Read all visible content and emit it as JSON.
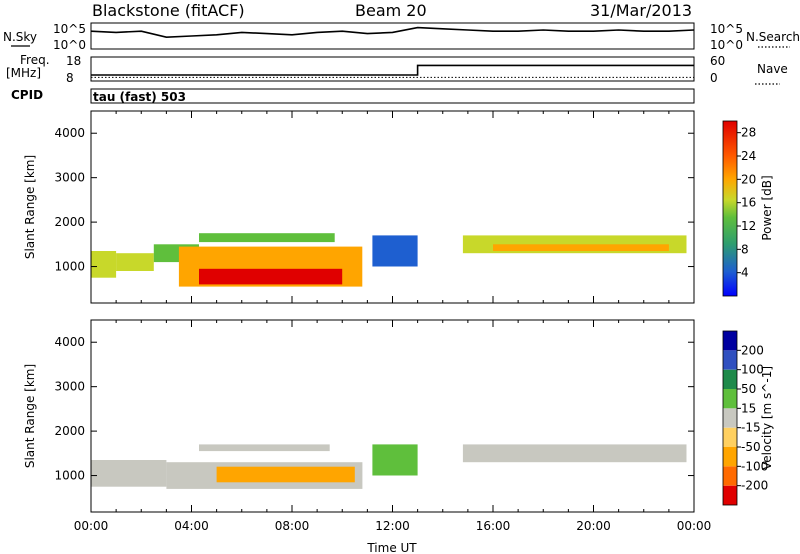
{
  "header": {
    "radar": "Blackstone (fitACF)",
    "beam": "Beam 20",
    "date": "31/Mar/2013"
  },
  "panel_labels": {
    "nsky": "N.Sky",
    "nsearch": "N.Search",
    "freq": "Freq.",
    "freq_unit": "[MHz]",
    "nave": "Nave",
    "cpid": "CPID",
    "cpid_value": "tau (fast) 503"
  },
  "chart_data": [
    {
      "type": "line",
      "name": "noise",
      "ylabel_left": "N.Sky",
      "ylabel_right": "N.Search",
      "left_ticks": [
        "10^5",
        "10^0"
      ],
      "right_ticks": [
        "10^5",
        "10^0"
      ],
      "x": [
        0,
        1,
        2,
        3,
        4,
        5,
        6,
        7,
        8,
        9,
        10,
        11,
        12,
        13,
        14,
        15,
        16,
        17,
        18,
        19,
        20,
        21,
        22,
        23,
        24
      ],
      "y_frac": [
        0.3,
        0.35,
        0.3,
        0.55,
        0.5,
        0.45,
        0.35,
        0.4,
        0.45,
        0.35,
        0.3,
        0.4,
        0.35,
        0.15,
        0.2,
        0.25,
        0.3,
        0.3,
        0.25,
        0.3,
        0.3,
        0.25,
        0.3,
        0.3,
        0.25
      ]
    },
    {
      "type": "line",
      "name": "frequency",
      "ylabel_left": "Freq. [MHz]",
      "ylabel_right": "Nave",
      "left_ticks": [
        "18",
        "8"
      ],
      "right_ticks": [
        "60",
        "0"
      ],
      "x": [
        0,
        13.0,
        13.0,
        24
      ],
      "freq_mhz": [
        10.5,
        10.5,
        14.5,
        14.5
      ],
      "nave": [
        9,
        9,
        9,
        9
      ]
    },
    {
      "type": "heatmap",
      "name": "power",
      "xlabel": "",
      "ylabel": "Slant Range [km]",
      "xlim": [
        0,
        24
      ],
      "ylim": [
        180,
        4500
      ],
      "yticks": [
        1000,
        2000,
        3000,
        4000
      ],
      "colorbar_label": "Power [dB]",
      "colorbar_ticks": [
        "4",
        "8",
        "12",
        "16",
        "20",
        "24",
        "28"
      ],
      "colorbar_range": [
        0,
        30
      ],
      "colorbar_colors": [
        "#0000ff",
        "#1e5fd0",
        "#2e9e6e",
        "#5fbf3c",
        "#c8d82a",
        "#ffa500",
        "#ff5a00",
        "#e00000"
      ],
      "regions": [
        {
          "t0": 0.0,
          "t1": 1.0,
          "r0": 750,
          "r1": 1350,
          "value": 18
        },
        {
          "t0": 1.0,
          "t1": 2.5,
          "r0": 900,
          "r1": 1300,
          "value": 16
        },
        {
          "t0": 2.5,
          "t1": 4.3,
          "r0": 1100,
          "r1": 1500,
          "value": 12
        },
        {
          "t0": 4.3,
          "t1": 9.7,
          "r0": 1550,
          "r1": 1750,
          "value": 12
        },
        {
          "t0": 3.5,
          "t1": 10.8,
          "r0": 550,
          "r1": 1450,
          "value": 22
        },
        {
          "t0": 4.3,
          "t1": 10.0,
          "r0": 600,
          "r1": 950,
          "value": 28
        },
        {
          "t0": 11.2,
          "t1": 13.0,
          "r0": 1000,
          "r1": 1700,
          "value": 7
        },
        {
          "t0": 14.8,
          "t1": 23.7,
          "r0": 1300,
          "r1": 1700,
          "value": 16
        },
        {
          "t0": 16.0,
          "t1": 23.0,
          "r0": 1350,
          "r1": 1500,
          "value": 22
        }
      ]
    },
    {
      "type": "heatmap",
      "name": "velocity",
      "xlabel": "Time UT",
      "ylabel": "Slant Range [km]",
      "xlim": [
        0,
        24
      ],
      "ylim": [
        180,
        4500
      ],
      "xticks": [
        "00:00",
        "04:00",
        "08:00",
        "12:00",
        "16:00",
        "20:00",
        "00:00"
      ],
      "yticks": [
        1000,
        2000,
        3000,
        4000
      ],
      "colorbar_label": "Velocity [m s^-1]",
      "colorbar_ticks": [
        "-200",
        "-100",
        "-50",
        "-15",
        "15",
        "50",
        "100",
        "200"
      ],
      "colorbar_colors": [
        "#e00000",
        "#ff6a00",
        "#ffa500",
        "#ffd060",
        "#c8c8c0",
        "#5fbf3c",
        "#1e8a4a",
        "#3050c0",
        "#0000a0"
      ],
      "regions": [
        {
          "t0": 0.0,
          "t1": 3.0,
          "r0": 750,
          "r1": 1350,
          "value": 0
        },
        {
          "t0": 3.0,
          "t1": 10.8,
          "r0": 700,
          "r1": 1300,
          "value": 0
        },
        {
          "t0": 5.0,
          "t1": 10.5,
          "r0": 850,
          "r1": 1200,
          "value": -60
        },
        {
          "t0": 4.3,
          "t1": 9.5,
          "r0": 1550,
          "r1": 1700,
          "value": 0
        },
        {
          "t0": 11.2,
          "t1": 13.0,
          "r0": 1000,
          "r1": 1700,
          "value": 40
        },
        {
          "t0": 14.8,
          "t1": 23.7,
          "r0": 1300,
          "r1": 1700,
          "value": 0
        }
      ]
    }
  ]
}
